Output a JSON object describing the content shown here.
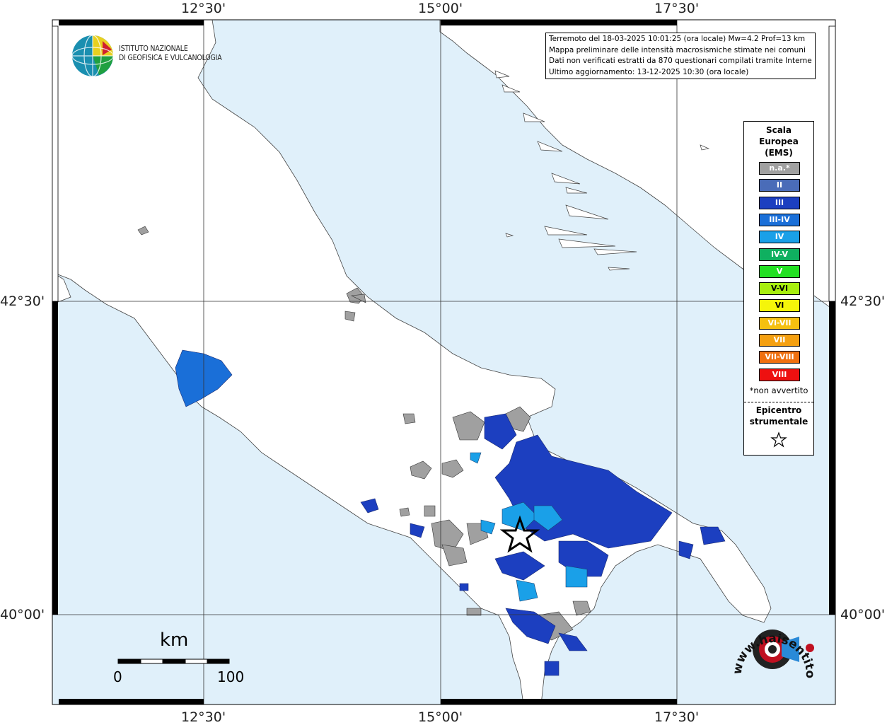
{
  "info_box": {
    "line1": "Terremoto del 18-03-2025 10:01:25 (ora locale) Mw=4.2 Prof=13 km",
    "line2": "Mappa preliminare delle intensità macrosismiche stimate nei comuni",
    "line3": "Dati non verificati estratti da 870 questionari compilati tramite Internet.",
    "line4": "Ultimo aggiornamento: 13-12-2025 10:30 (ora locale)"
  },
  "institute": {
    "line1": "ISTITUTO NAZIONALE",
    "line2": "DI GEOFISICA E VULCANOLOGIA"
  },
  "axes": {
    "top": [
      "12°30'",
      "15°00'",
      "17°30'"
    ],
    "bottom": [
      "12°30'",
      "15°00'",
      "17°30'"
    ],
    "left": [
      "42°30'",
      "40°00'"
    ],
    "right": [
      "42°30'",
      "40°00'"
    ]
  },
  "legend": {
    "title": [
      "Scala",
      "Europea",
      "(EMS)"
    ],
    "items": [
      {
        "label": "n.a.*",
        "color": "#a0a0a0"
      },
      {
        "label": "II",
        "color": "#4a6cb8"
      },
      {
        "label": "III",
        "color": "#1c3fc0"
      },
      {
        "label": "III-IV",
        "color": "#1a6fd8"
      },
      {
        "label": "IV",
        "color": "#1aa0e8"
      },
      {
        "label": "IV-V",
        "color": "#0fb060"
      },
      {
        "label": "V",
        "color": "#22e022"
      },
      {
        "label": "V-VI",
        "color": "#a8ee10"
      },
      {
        "label": "VI",
        "color": "#f5f50a"
      },
      {
        "label": "VI-VII",
        "color": "#f5c010"
      },
      {
        "label": "VII",
        "color": "#f5a010"
      },
      {
        "label": "VII-VIII",
        "color": "#f07010"
      },
      {
        "label": "VIII",
        "color": "#ee1010"
      }
    ],
    "note": "*non avvertito",
    "epicenter": [
      "Epicentro",
      "strumentale"
    ]
  },
  "scale_bar": {
    "unit": "km",
    "start": "0",
    "end": "100"
  },
  "colors": {
    "sea": "#e0f0fa",
    "land": "#ffffff",
    "na": "#a0a0a0",
    "ii": "#4a6cb8",
    "iii": "#1c3fc0",
    "iii_iv": "#1a6fd8",
    "iv": "#1aa0e8"
  },
  "watermark": {
    "text": "www.haisentitoilterremoto.it"
  }
}
